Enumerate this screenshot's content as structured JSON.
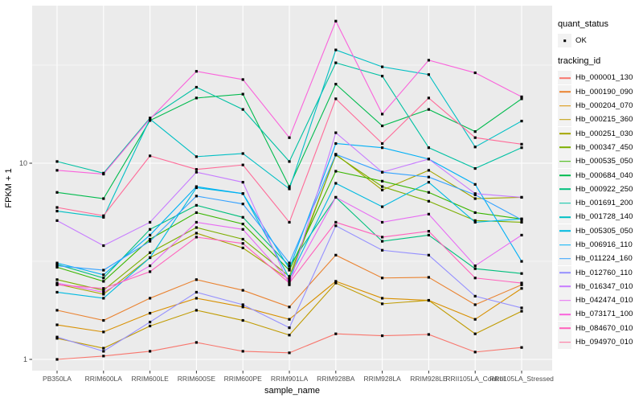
{
  "page": {
    "background": "#FFFFFF"
  },
  "legend": {
    "quant_status_title": "quant_status",
    "quant_status_value": "OK",
    "tracking_id_title": "tracking_id",
    "key_background": "#F2F2F2",
    "point_color": "#000000"
  },
  "chart_data": {
    "type": "line",
    "title": "",
    "xlabel": "sample_name",
    "ylabel": "FPKM + 1",
    "y_scale": "log10",
    "y_tick_values": [
      1,
      10
    ],
    "y_tick_labels": [
      "1",
      "10"
    ],
    "y_minor_gridlines": [
      3.1623,
      31.623
    ],
    "ylim": [
      0.88,
      64
    ],
    "grid": true,
    "legend_position": "right",
    "panel_background": "#EBEBEB",
    "gridline_color": "#FFFFFF",
    "point_color": "#000000",
    "categories": [
      "PB350LA",
      "RRIM600LA",
      "RRIM600LE",
      "RRIM600SE",
      "RRIM600PE",
      "RRIM901LA",
      "RRIM928BA",
      "RRIM928LA",
      "RRIM928LE",
      "RRII105LA_Control",
      "RRII105LA_Stressed"
    ],
    "series": [
      {
        "name": "Hb_000001_130",
        "color": "#F8766D",
        "values": [
          1.0,
          1.04,
          1.1,
          1.22,
          1.1,
          1.08,
          1.35,
          1.32,
          1.34,
          1.09,
          1.15
        ]
      },
      {
        "name": "Hb_000190_090",
        "color": "#EA8331",
        "values": [
          1.78,
          1.58,
          2.05,
          2.55,
          2.25,
          1.85,
          3.4,
          2.6,
          2.62,
          1.9,
          2.4
        ]
      },
      {
        "name": "Hb_000204_070",
        "color": "#D89000",
        "values": [
          1.5,
          1.38,
          1.72,
          2.05,
          1.85,
          1.6,
          2.5,
          2.05,
          2.0,
          1.6,
          2.3
        ]
      },
      {
        "name": "Hb_000215_360",
        "color": "#C09B00",
        "values": [
          1.28,
          1.14,
          1.48,
          1.78,
          1.58,
          1.33,
          2.45,
          1.92,
          2.0,
          1.35,
          1.76
        ]
      },
      {
        "name": "Hb_000251_030",
        "color": "#A3A500",
        "values": [
          2.42,
          2.15,
          3.3,
          4.4,
          3.7,
          2.55,
          11.1,
          7.3,
          9.2,
          6.6,
          6.7
        ]
      },
      {
        "name": "Hb_000347_450",
        "color": "#7CAE00",
        "values": [
          2.55,
          2.25,
          3.5,
          4.7,
          4.1,
          2.65,
          11.0,
          7.6,
          6.4,
          5.1,
          5.0
        ]
      },
      {
        "name": "Hb_000535_050",
        "color": "#39B600",
        "values": [
          2.95,
          2.5,
          4.1,
          5.6,
          4.9,
          2.85,
          9.1,
          8.1,
          7.1,
          5.6,
          5.2
        ]
      },
      {
        "name": "Hb_000684_040",
        "color": "#00BB4E",
        "values": [
          7.1,
          6.6,
          16.5,
          21.5,
          22.5,
          7.6,
          25.3,
          15.5,
          18.8,
          14.5,
          21.3
        ]
      },
      {
        "name": "Hb_000922_250",
        "color": "#00BF7D",
        "values": [
          3.05,
          2.6,
          4.6,
          6.1,
          5.3,
          3.0,
          6.7,
          4.0,
          4.3,
          2.9,
          2.74
        ]
      },
      {
        "name": "Hb_001691_200",
        "color": "#00C1A3",
        "values": [
          10.2,
          8.9,
          17.0,
          24.4,
          18.8,
          10.2,
          32.5,
          27.8,
          12.0,
          9.4,
          12.0
        ]
      },
      {
        "name": "Hb_001728_140",
        "color": "#00BFC4",
        "values": [
          5.7,
          5.3,
          16.8,
          10.8,
          11.2,
          7.4,
          37.8,
          31.0,
          28.3,
          12.1,
          16.4
        ]
      },
      {
        "name": "Hb_005305_050",
        "color": "#00BAE0",
        "values": [
          2.2,
          2.05,
          3.3,
          7.5,
          7.0,
          2.6,
          7.9,
          6.0,
          8.0,
          5.0,
          5.2
        ]
      },
      {
        "name": "Hb_006916_110",
        "color": "#00B0F6",
        "values": [
          3.1,
          2.7,
          4.3,
          7.6,
          7.0,
          2.9,
          12.6,
          12.0,
          10.5,
          7.8,
          3.16
        ]
      },
      {
        "name": "Hb_011224_160",
        "color": "#35A2FF",
        "values": [
          3.0,
          2.85,
          4.0,
          6.8,
          6.2,
          3.1,
          11.1,
          9.0,
          8.5,
          6.9,
          5.15
        ]
      },
      {
        "name": "Hb_012760_110",
        "color": "#9590FF",
        "values": [
          1.3,
          1.1,
          1.55,
          2.2,
          1.9,
          1.45,
          4.8,
          3.6,
          3.4,
          2.1,
          1.83
        ]
      },
      {
        "name": "Hb_016347_010",
        "color": "#C77CFF",
        "values": [
          5.1,
          3.8,
          5.0,
          9.0,
          8.0,
          2.4,
          14.3,
          9.0,
          10.5,
          7.0,
          6.7
        ]
      },
      {
        "name": "Hb_042474_010",
        "color": "#E76BF3",
        "values": [
          2.45,
          2.2,
          3.0,
          5.0,
          4.6,
          2.5,
          6.7,
          5.0,
          5.5,
          3.0,
          4.3
        ]
      },
      {
        "name": "Hb_073171_100",
        "color": "#FA62DB",
        "values": [
          9.2,
          8.8,
          16.8,
          29.4,
          26.7,
          13.5,
          53.0,
          17.8,
          33.5,
          28.9,
          21.8
        ]
      },
      {
        "name": "Hb_084670_010",
        "color": "#FF62BC",
        "values": [
          2.4,
          2.3,
          2.8,
          4.2,
          3.9,
          2.45,
          5.0,
          4.2,
          4.5,
          2.6,
          2.45
        ]
      },
      {
        "name": "Hb_094970_010",
        "color": "#FF6A98",
        "values": [
          5.95,
          5.4,
          10.9,
          9.3,
          9.8,
          5.0,
          21.3,
          12.6,
          21.5,
          13.5,
          12.5
        ]
      }
    ]
  }
}
